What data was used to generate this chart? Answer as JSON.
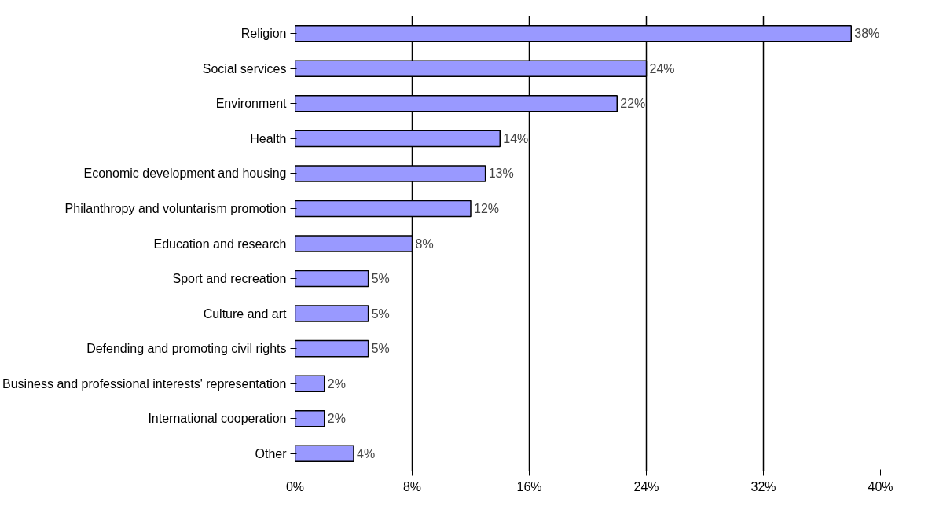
{
  "chart_data": {
    "type": "bar",
    "orientation": "horizontal",
    "categories": [
      "Religion",
      "Social services",
      "Environment",
      "Health",
      "Economic development and housing",
      "Philanthropy and voluntarism promotion",
      "Education and research",
      "Sport and recreation",
      "Culture and art",
      "Defending and promoting civil rights",
      "Business and professional interests' representation",
      "International cooperation",
      "Other"
    ],
    "values": [
      38,
      24,
      22,
      14,
      13,
      12,
      8,
      5,
      5,
      5,
      2,
      2,
      4
    ],
    "value_labels": [
      "38%",
      "24%",
      "22%",
      "14%",
      "13%",
      "12%",
      "8%",
      "5%",
      "5%",
      "5%",
      "2%",
      "2%",
      "4%"
    ],
    "color": "#9999ff",
    "xlim": [
      0,
      40
    ],
    "xticks": [
      {
        "value": 0,
        "label": "0%"
      },
      {
        "value": 8,
        "label": "8%"
      },
      {
        "value": 16,
        "label": "16%"
      },
      {
        "value": 24,
        "label": "24%"
      },
      {
        "value": 32,
        "label": "32%"
      },
      {
        "value": 40,
        "label": "40%"
      }
    ],
    "grid": "x"
  }
}
